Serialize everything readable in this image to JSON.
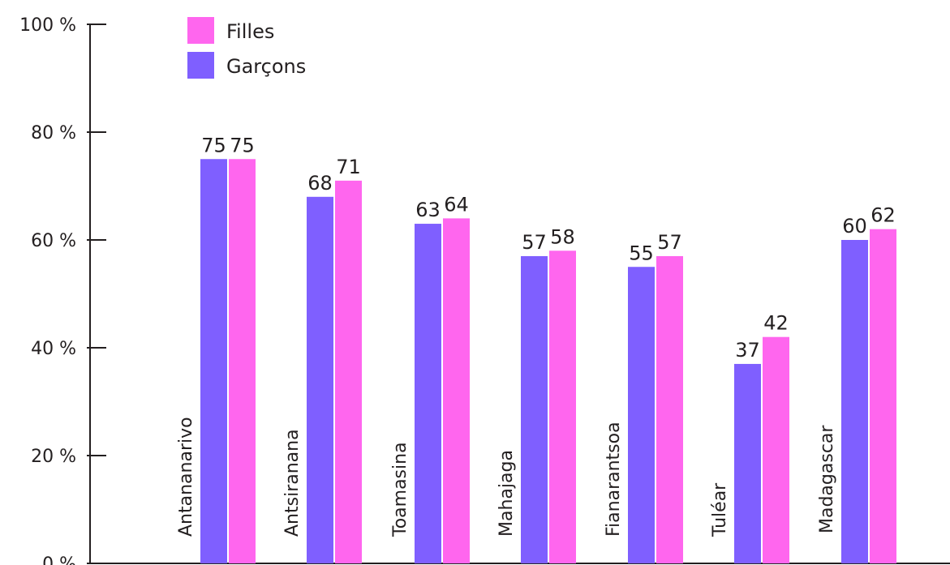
{
  "chart_data": {
    "type": "bar",
    "categories": [
      "Antananarivo",
      "Antsiranana",
      "Toamasina",
      "Mahajaga",
      "Fianarantsoa",
      "Tuléar",
      "Madagascar"
    ],
    "series": [
      {
        "name": "Garçons",
        "color": "#7f5fff",
        "values": [
          75,
          68,
          63,
          57,
          55,
          37,
          60
        ]
      },
      {
        "name": "Filles",
        "color": "#ff66ee",
        "values": [
          75,
          71,
          64,
          58,
          57,
          42,
          62
        ]
      }
    ],
    "yticks": [
      "0 %",
      "20 %",
      "40 %",
      "60 %",
      "80 %",
      "100 %"
    ],
    "ylim": [
      0,
      100
    ],
    "legend": {
      "position": "top-left",
      "order": [
        "Filles",
        "Garçons"
      ]
    },
    "grid": false,
    "title": "",
    "xlabel": "",
    "ylabel": ""
  }
}
